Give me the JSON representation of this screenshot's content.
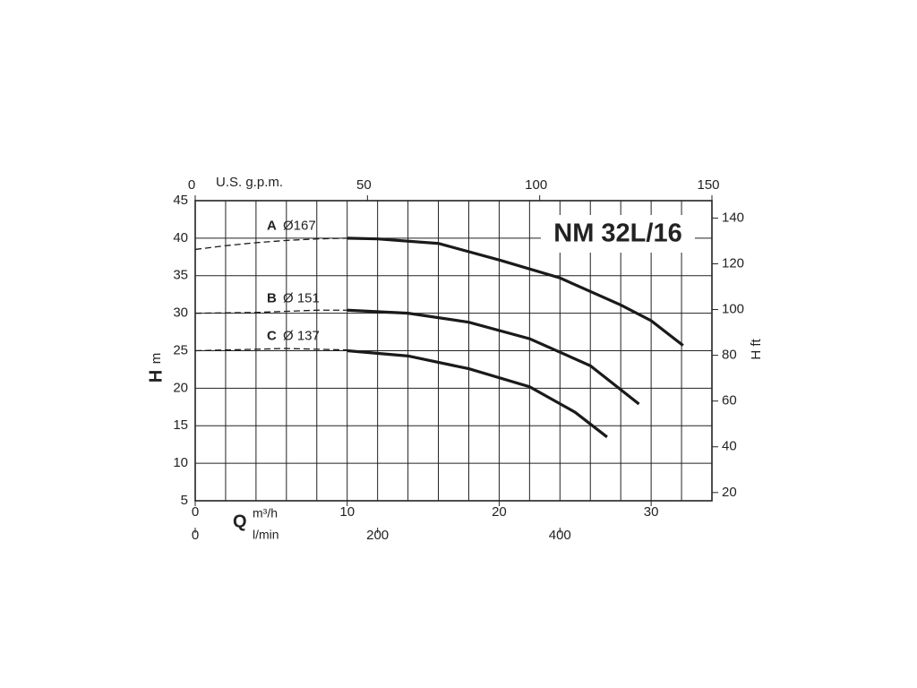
{
  "chart_data": {
    "type": "line",
    "title": "NM 32L/16",
    "y_label": "H",
    "y_unit": "m",
    "y2_label": "H ft",
    "x_label": "Q",
    "x_unit": "m³/h",
    "x3_unit": "l/min",
    "x2_label": "U.S. g.p.m.",
    "xlim": [
      0,
      34
    ],
    "xticks": [
      0,
      10,
      20,
      30
    ],
    "xgrid": [
      2,
      4,
      6,
      8,
      10,
      12,
      14,
      16,
      18,
      20,
      22,
      24,
      26,
      28,
      30,
      32
    ],
    "ylim": [
      5,
      45
    ],
    "yticks": [
      5,
      10,
      15,
      20,
      25,
      30,
      35,
      40,
      45
    ],
    "x2lim": [
      0,
      150
    ],
    "x2ticks": [
      0,
      50,
      100,
      150
    ],
    "x3lim": [
      0,
      566.7
    ],
    "x3ticks": [
      0,
      200,
      400
    ],
    "y2lim": [
      16.4,
      147.6
    ],
    "y2ticks": [
      20,
      40,
      60,
      80,
      100,
      120,
      140
    ],
    "color": "#1a1a1a",
    "series": [
      {
        "name": "A",
        "diameter": "Ø167",
        "dashed": {
          "x": [
            0,
            2,
            4,
            6,
            8,
            10
          ],
          "values": [
            38.5,
            39.0,
            39.4,
            39.7,
            39.9,
            40
          ]
        },
        "solid": {
          "x": [
            10,
            12,
            16,
            20,
            24,
            28,
            30,
            32.1
          ],
          "values": [
            40,
            39.9,
            39.3,
            37.1,
            34.7,
            31.1,
            29,
            25.7
          ]
        }
      },
      {
        "name": "B",
        "diameter": "Ø 151",
        "dashed": {
          "x": [
            0,
            4,
            8,
            10
          ],
          "values": [
            30,
            30.1,
            30.4,
            30.4
          ]
        },
        "solid": {
          "x": [
            10,
            14,
            18,
            22,
            26,
            29.2
          ],
          "values": [
            30.4,
            30,
            28.8,
            26.6,
            23,
            17.9
          ]
        }
      },
      {
        "name": "C",
        "diameter": "Ø 137",
        "dashed": {
          "x": [
            0,
            6,
            10
          ],
          "values": [
            25,
            25.3,
            25.1
          ]
        },
        "solid": {
          "x": [
            10,
            14,
            18,
            22,
            25,
            27.1
          ],
          "values": [
            25,
            24.3,
            22.6,
            20.2,
            16.8,
            13.5
          ]
        }
      }
    ]
  }
}
